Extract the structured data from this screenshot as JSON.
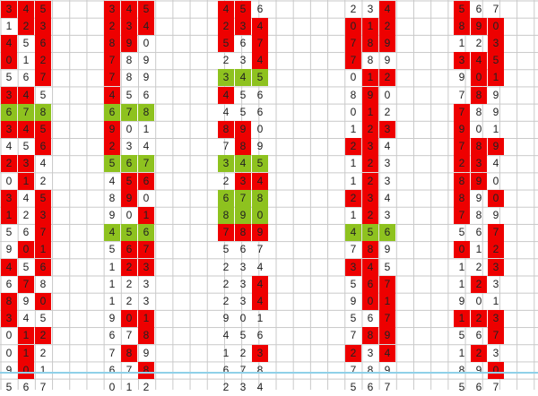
{
  "colors": {
    "highlight_red": "#ee0000",
    "highlight_green": "#8ec21f",
    "grid_line": "#c9c9c9",
    "text": "#222222",
    "bottom_line": "#8fd0e8"
  },
  "groups": [
    {
      "name": "group-1",
      "rows": [
        [
          "3",
          "4",
          "5"
        ],
        [
          "1",
          "2",
          "3"
        ],
        [
          "4",
          "5",
          "6"
        ],
        [
          "0",
          "1",
          "2"
        ],
        [
          "5",
          "6",
          "7"
        ],
        [
          "3",
          "4",
          "5"
        ],
        [
          "6",
          "7",
          "8"
        ],
        [
          "3",
          "4",
          "5"
        ],
        [
          "4",
          "5",
          "6"
        ],
        [
          "2",
          "3",
          "4"
        ],
        [
          "0",
          "1",
          "2"
        ],
        [
          "3",
          "4",
          "5"
        ],
        [
          "1",
          "2",
          "3"
        ],
        [
          "5",
          "6",
          "7"
        ],
        [
          "9",
          "0",
          "1"
        ],
        [
          "4",
          "5",
          "6"
        ],
        [
          "6",
          "7",
          "8"
        ],
        [
          "8",
          "9",
          "0"
        ],
        [
          "3",
          "4",
          "5"
        ],
        [
          "0",
          "1",
          "2"
        ],
        [
          "0",
          "1",
          "2"
        ],
        [
          "9",
          "0",
          "1"
        ],
        [
          "5",
          "6",
          "7"
        ]
      ],
      "marks": [
        [
          "r",
          "r",
          "r"
        ],
        [
          "",
          "r",
          "r"
        ],
        [
          "r",
          "",
          "r"
        ],
        [
          "r",
          "",
          "r"
        ],
        [
          "",
          "",
          "r"
        ],
        [
          "r",
          "r",
          ""
        ],
        [
          "g",
          "g",
          "g"
        ],
        [
          "r",
          "r",
          "r"
        ],
        [
          "",
          "",
          "r"
        ],
        [
          "r",
          "r",
          ""
        ],
        [
          "",
          "r",
          ""
        ],
        [
          "r",
          "",
          "r"
        ],
        [
          "r",
          "",
          "r"
        ],
        [
          "",
          "",
          "r"
        ],
        [
          "",
          "r",
          "r"
        ],
        [
          "r",
          "",
          "r"
        ],
        [
          "",
          "r",
          ""
        ],
        [
          "r",
          "",
          "r"
        ],
        [
          "r",
          "",
          ""
        ],
        [
          "",
          "r",
          "r"
        ],
        [
          "",
          "r",
          ""
        ],
        [
          "",
          "r",
          ""
        ],
        [
          "",
          "",
          ""
        ]
      ]
    },
    {
      "name": "group-2",
      "rows": [
        [
          "3",
          "4",
          "5"
        ],
        [
          "2",
          "3",
          "4"
        ],
        [
          "8",
          "9",
          "0"
        ],
        [
          "7",
          "8",
          "9"
        ],
        [
          "7",
          "8",
          "9"
        ],
        [
          "4",
          "5",
          "6"
        ],
        [
          "6",
          "7",
          "8"
        ],
        [
          "9",
          "0",
          "1"
        ],
        [
          "2",
          "3",
          "4"
        ],
        [
          "5",
          "6",
          "7"
        ],
        [
          "4",
          "5",
          "6"
        ],
        [
          "8",
          "9",
          "0"
        ],
        [
          "9",
          "0",
          "1"
        ],
        [
          "4",
          "5",
          "6"
        ],
        [
          "5",
          "6",
          "7"
        ],
        [
          "1",
          "2",
          "3"
        ],
        [
          "1",
          "2",
          "3"
        ],
        [
          "1",
          "2",
          "3"
        ],
        [
          "9",
          "0",
          "1"
        ],
        [
          "6",
          "7",
          "8"
        ],
        [
          "7",
          "8",
          "9"
        ],
        [
          "6",
          "7",
          "8"
        ],
        [
          "0",
          "1",
          "2"
        ]
      ],
      "marks": [
        [
          "r",
          "r",
          "r"
        ],
        [
          "r",
          "r",
          "r"
        ],
        [
          "r",
          "r",
          ""
        ],
        [
          "r",
          "",
          ""
        ],
        [
          "r",
          "",
          ""
        ],
        [
          "r",
          "",
          ""
        ],
        [
          "g",
          "g",
          "g"
        ],
        [
          "r",
          "",
          ""
        ],
        [
          "r",
          "",
          ""
        ],
        [
          "g",
          "g",
          "g"
        ],
        [
          "",
          "r",
          "r"
        ],
        [
          "",
          "r",
          ""
        ],
        [
          "",
          "",
          "r"
        ],
        [
          "g",
          "g",
          "g"
        ],
        [
          "",
          "r",
          "r"
        ],
        [
          "",
          "r",
          "r"
        ],
        [
          "",
          "",
          ""
        ],
        [
          "",
          "",
          ""
        ],
        [
          "",
          "r",
          "r"
        ],
        [
          "",
          "",
          "r"
        ],
        [
          "",
          "r",
          ""
        ],
        [
          "",
          "",
          "r"
        ],
        [
          "",
          "",
          ""
        ]
      ]
    },
    {
      "name": "group-3",
      "rows": [
        [
          "4",
          "5",
          "6"
        ],
        [
          "2",
          "3",
          "4"
        ],
        [
          "5",
          "6",
          "7"
        ],
        [
          "2",
          "3",
          "4"
        ],
        [
          "3",
          "4",
          "5"
        ],
        [
          "4",
          "5",
          "6"
        ],
        [
          "4",
          "5",
          "6"
        ],
        [
          "8",
          "9",
          "0"
        ],
        [
          "7",
          "8",
          "9"
        ],
        [
          "3",
          "4",
          "5"
        ],
        [
          "2",
          "3",
          "4"
        ],
        [
          "6",
          "7",
          "8"
        ],
        [
          "8",
          "9",
          "0"
        ],
        [
          "7",
          "8",
          "9"
        ],
        [
          "5",
          "6",
          "7"
        ],
        [
          "2",
          "3",
          "4"
        ],
        [
          "2",
          "3",
          "4"
        ],
        [
          "2",
          "3",
          "4"
        ],
        [
          "9",
          "0",
          "1"
        ],
        [
          "4",
          "5",
          "6"
        ],
        [
          "1",
          "2",
          "3"
        ],
        [
          "6",
          "7",
          "8"
        ],
        [
          "2",
          "3",
          "4"
        ]
      ],
      "marks": [
        [
          "r",
          "r",
          ""
        ],
        [
          "r",
          "r",
          "r"
        ],
        [
          "r",
          "",
          "r"
        ],
        [
          "",
          "",
          "r"
        ],
        [
          "g",
          "g",
          "g"
        ],
        [
          "r",
          "",
          ""
        ],
        [
          "",
          "",
          ""
        ],
        [
          "r",
          "r",
          ""
        ],
        [
          "",
          "r",
          ""
        ],
        [
          "g",
          "g",
          "g"
        ],
        [
          "",
          "r",
          "r"
        ],
        [
          "g",
          "g",
          "g"
        ],
        [
          "g",
          "g",
          "g"
        ],
        [
          "r",
          "r",
          "r"
        ],
        [
          "",
          "",
          ""
        ],
        [
          "",
          "",
          ""
        ],
        [
          "",
          "",
          "r"
        ],
        [
          "",
          "",
          "r"
        ],
        [
          "",
          "",
          ""
        ],
        [
          "",
          "",
          ""
        ],
        [
          "",
          "",
          "r"
        ],
        [
          "",
          "",
          ""
        ],
        [
          "",
          "",
          ""
        ]
      ]
    },
    {
      "name": "group-4",
      "rows": [
        [
          "2",
          "3",
          "4"
        ],
        [
          "0",
          "1",
          "2"
        ],
        [
          "7",
          "8",
          "9"
        ],
        [
          "7",
          "8",
          "9"
        ],
        [
          "0",
          "1",
          "2"
        ],
        [
          "8",
          "9",
          "0"
        ],
        [
          "0",
          "1",
          "2"
        ],
        [
          "1",
          "2",
          "3"
        ],
        [
          "2",
          "3",
          "4"
        ],
        [
          "1",
          "2",
          "3"
        ],
        [
          "1",
          "2",
          "3"
        ],
        [
          "2",
          "3",
          "4"
        ],
        [
          "1",
          "2",
          "3"
        ],
        [
          "4",
          "5",
          "6"
        ],
        [
          "7",
          "8",
          "9"
        ],
        [
          "3",
          "4",
          "5"
        ],
        [
          "5",
          "6",
          "7"
        ],
        [
          "9",
          "0",
          "1"
        ],
        [
          "5",
          "6",
          "7"
        ],
        [
          "7",
          "8",
          "9"
        ],
        [
          "2",
          "3",
          "4"
        ],
        [
          "7",
          "8",
          "9"
        ],
        [
          "5",
          "6",
          "7"
        ]
      ],
      "marks": [
        [
          "",
          "",
          "r"
        ],
        [
          "r",
          "r",
          "r"
        ],
        [
          "r",
          "r",
          "r"
        ],
        [
          "r",
          "",
          ""
        ],
        [
          "",
          "r",
          "r"
        ],
        [
          "",
          "r",
          ""
        ],
        [
          "",
          "r",
          ""
        ],
        [
          "",
          "r",
          "r"
        ],
        [
          "r",
          "r",
          ""
        ],
        [
          "",
          "r",
          ""
        ],
        [
          "",
          "r",
          ""
        ],
        [
          "r",
          "r",
          ""
        ],
        [
          "",
          "r",
          ""
        ],
        [
          "g",
          "g",
          "g"
        ],
        [
          "",
          "r",
          ""
        ],
        [
          "r",
          "r",
          ""
        ],
        [
          "",
          "r",
          "r"
        ],
        [
          "",
          "r",
          "r"
        ],
        [
          "",
          "",
          "r"
        ],
        [
          "",
          "r",
          "r"
        ],
        [
          "r",
          "",
          "r"
        ],
        [
          "",
          "",
          ""
        ],
        [
          "",
          "",
          ""
        ]
      ]
    },
    {
      "name": "group-5",
      "rows": [
        [
          "5",
          "6",
          "7"
        ],
        [
          "8",
          "9",
          "0"
        ],
        [
          "1",
          "2",
          "3"
        ],
        [
          "3",
          "4",
          "5"
        ],
        [
          "9",
          "0",
          "1"
        ],
        [
          "7",
          "8",
          "9"
        ],
        [
          "7",
          "8",
          "9"
        ],
        [
          "9",
          "0",
          "1"
        ],
        [
          "7",
          "8",
          "9"
        ],
        [
          "2",
          "3",
          "4"
        ],
        [
          "8",
          "9",
          "0"
        ],
        [
          "8",
          "9",
          "0"
        ],
        [
          "7",
          "8",
          "9"
        ],
        [
          "5",
          "6",
          "7"
        ],
        [
          "0",
          "1",
          "2"
        ],
        [
          "1",
          "2",
          "3"
        ],
        [
          "1",
          "2",
          "3"
        ],
        [
          "9",
          "0",
          "1"
        ],
        [
          "1",
          "2",
          "3"
        ],
        [
          "5",
          "6",
          "7"
        ],
        [
          "1",
          "2",
          "3"
        ],
        [
          "8",
          "9",
          "0"
        ],
        [
          "5",
          "6",
          "7"
        ]
      ],
      "marks": [
        [
          "r",
          "",
          ""
        ],
        [
          "r",
          "r",
          "r"
        ],
        [
          "",
          "",
          "r"
        ],
        [
          "r",
          "r",
          "r"
        ],
        [
          "",
          "r",
          "r"
        ],
        [
          "",
          "r",
          ""
        ],
        [
          "r",
          "",
          ""
        ],
        [
          "r",
          "",
          ""
        ],
        [
          "r",
          "r",
          "r"
        ],
        [
          "r",
          "r",
          ""
        ],
        [
          "r",
          "r",
          ""
        ],
        [
          "r",
          "",
          "r"
        ],
        [
          "r",
          "",
          ""
        ],
        [
          "",
          "",
          "r"
        ],
        [
          "r",
          "",
          "r"
        ],
        [
          "",
          "",
          "r"
        ],
        [
          "",
          "r",
          ""
        ],
        [
          "",
          "",
          ""
        ],
        [
          "r",
          "r",
          "r"
        ],
        [
          "",
          "",
          "r"
        ],
        [
          "",
          "r",
          ""
        ],
        [
          "",
          "",
          "r"
        ],
        [
          "",
          "",
          ""
        ]
      ]
    }
  ]
}
